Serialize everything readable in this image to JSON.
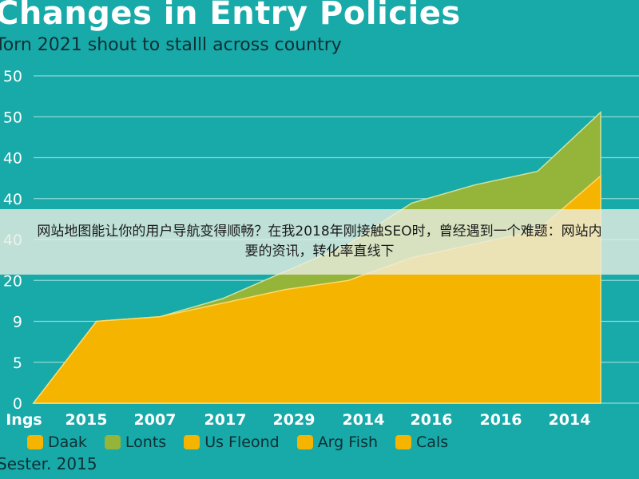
{
  "chart_data": {
    "type": "area",
    "title": "Changes in Entry Policies",
    "subtitle": "Torn 2021 shout to stalll across country",
    "x_ticks": [
      "Ings",
      "2015",
      "2007",
      "2017",
      "2029",
      "2014",
      "2016",
      "2016",
      "2014"
    ],
    "y_ticks": [
      "0",
      "5",
      "9",
      "20",
      "40",
      "40",
      "40",
      "50",
      "50"
    ],
    "series": [
      {
        "name": "Lonts",
        "color": "#94b43a",
        "values": [
          0,
          9,
          9.5,
          11.5,
          14.5,
          17.5,
          22,
          24,
          25.5,
          32
        ]
      },
      {
        "name": "Us Fleond",
        "color": "#f4b400",
        "values": [
          0,
          9,
          9.5,
          11,
          12.5,
          13.5,
          16,
          17.5,
          19,
          25
        ]
      }
    ],
    "ylim": [
      0,
      36
    ],
    "grid": true,
    "legend": {
      "placement": "bottom",
      "items": [
        {
          "label": "Daak",
          "color": "#f4b400"
        },
        {
          "label": "Lonts",
          "color": "#94b43a"
        },
        {
          "label": "Us Fleond",
          "color": "#f4b400"
        },
        {
          "label": "Arg Fish",
          "color": "#f4b400"
        },
        {
          "label": "Cals",
          "color": "#f4b400"
        }
      ]
    },
    "footer": "Sester. 2015"
  },
  "overlay": {
    "line1": "网站地图能让你的用户导航变得顺畅？在我2018年刚接触SEO时，曾经遇到一个难题：网站内",
    "line2": "要的资讯，转化率直线下"
  }
}
